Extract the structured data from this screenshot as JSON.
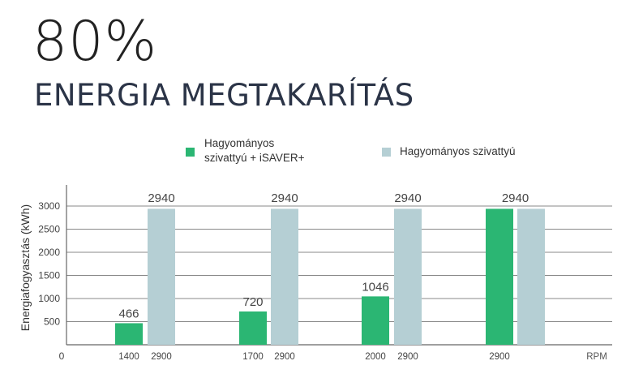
{
  "header": {
    "big_value": "80%",
    "title": "ENERGIA MEGTAKARÍTÁS"
  },
  "chart_data": {
    "type": "bar",
    "ylabel": "Energiafogyasztás (kWh)",
    "xlabel": "RPM",
    "ylim": [
      0,
      3000
    ],
    "yticks": [
      500,
      1000,
      1500,
      2000,
      2500,
      3000
    ],
    "origin_label": "0",
    "grid": true,
    "legend_position": "top",
    "series": [
      {
        "name": "Hagyományos szivattyú + iSAVER+",
        "name_lines": [
          "Hagyományos",
          "szivattyú + iSAVER+"
        ],
        "color": "#2bb673",
        "values": [
          466,
          720,
          1046,
          2940
        ],
        "rpm_labels": [
          "1400",
          "1700",
          "2000",
          "2900"
        ]
      },
      {
        "name": "Hagyományos szivattyú",
        "color": "#b5cfd4",
        "values": [
          2940,
          2940,
          2940,
          2940
        ],
        "rpm_labels": [
          "2900",
          "2900",
          "2900",
          ""
        ]
      }
    ],
    "data_labels": [
      [
        "466",
        "2940"
      ],
      [
        "720",
        "2940"
      ],
      [
        "1046",
        "2940"
      ],
      [
        "2940"
      ]
    ]
  }
}
